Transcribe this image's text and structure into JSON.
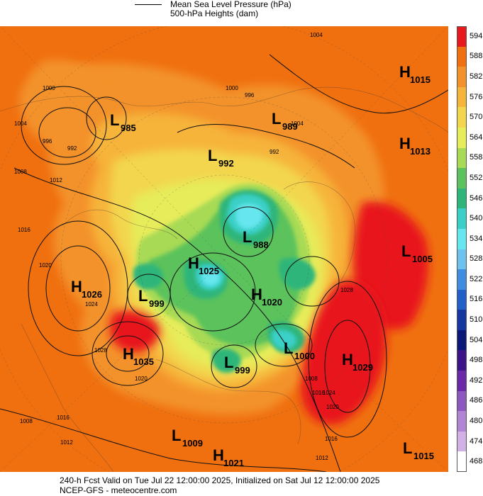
{
  "legend": {
    "line1": "Mean Sea Level Pressure (hPa)",
    "line2": "500-hPa Heights (dam)"
  },
  "colorbar": {
    "labels": [
      "594",
      "588",
      "582",
      "576",
      "570",
      "564",
      "558",
      "552",
      "546",
      "540",
      "534",
      "528",
      "522",
      "516",
      "510",
      "504",
      "498",
      "492",
      "486",
      "480",
      "474",
      "468"
    ],
    "colors": [
      "#e8191a",
      "#f07010",
      "#f3922a",
      "#f6b43a",
      "#f3d64d",
      "#e6ec5a",
      "#a8da55",
      "#5cc25c",
      "#2fb57a",
      "#3ad0c8",
      "#66e6ee",
      "#6cc4ee",
      "#3d8ee0",
      "#2060c8",
      "#1438a0",
      "#0a1878",
      "#3c1488",
      "#6a2aa8",
      "#8e56c0",
      "#b284d4",
      "#d2b2e6",
      "#ffffff"
    ]
  },
  "map": {
    "systems": [
      {
        "type": "H",
        "value": "1015"
      },
      {
        "type": "L",
        "value": "985"
      },
      {
        "type": "L",
        "value": "989"
      },
      {
        "type": "H",
        "value": "1013"
      },
      {
        "type": "L",
        "value": "992"
      },
      {
        "type": "L",
        "value": "988"
      },
      {
        "type": "L",
        "value": "1005"
      },
      {
        "type": "H",
        "value": "1025"
      },
      {
        "type": "H",
        "value": "1026"
      },
      {
        "type": "L",
        "value": "999"
      },
      {
        "type": "H",
        "value": "1020"
      },
      {
        "type": "L",
        "value": "1000"
      },
      {
        "type": "H",
        "value": "1035"
      },
      {
        "type": "L",
        "value": "999"
      },
      {
        "type": "H",
        "value": "1029"
      },
      {
        "type": "L",
        "value": "1009"
      },
      {
        "type": "H",
        "value": "1021"
      },
      {
        "type": "L",
        "value": "1015"
      }
    ],
    "isobar_labels": [
      "1004",
      "1000",
      "992",
      "996",
      "1004",
      "1008",
      "1012",
      "1016",
      "1020",
      "1024",
      "1028",
      "1016",
      "1012",
      "1008",
      "1020",
      "1028",
      "1024",
      "1016",
      "1020",
      "1016",
      "1012",
      "1008",
      "1004",
      "1000",
      "996",
      "992"
    ]
  },
  "footer": {
    "line1": "240-h Fcst Valid on Tue Jul 22 12:00:00 2025, Initialized on Sat Jul 12 12:00:00 2025",
    "line2": "NCEP-GFS  - meteocentre.com"
  }
}
